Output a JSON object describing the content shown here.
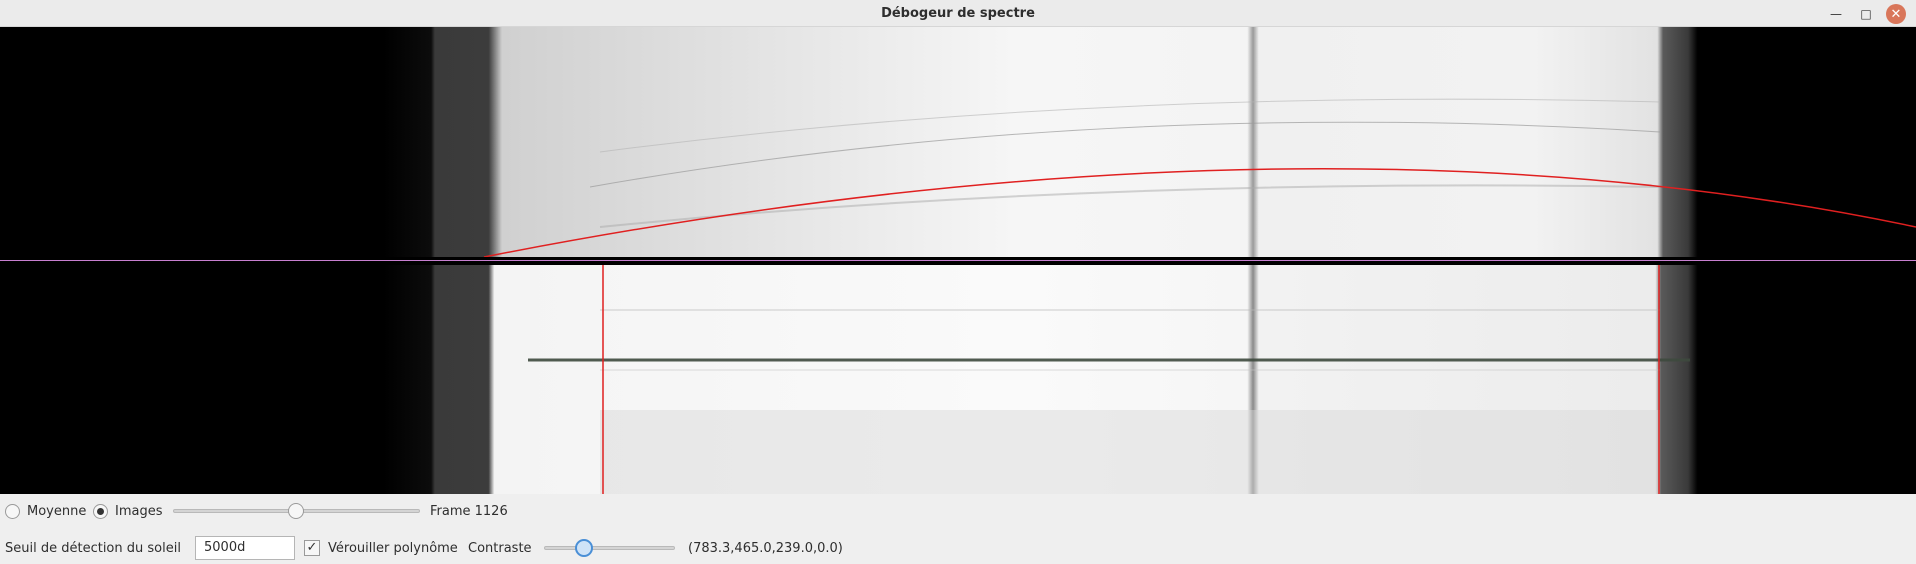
{
  "window": {
    "title": "Débogeur de spectre"
  },
  "mode": {
    "option_average": "Moyenne",
    "option_images": "Images",
    "selected": "Images"
  },
  "frame": {
    "label": "Frame 1126",
    "slider_level": 0.5
  },
  "detection": {
    "label": "Seuil de détection du soleil",
    "value": "5000d"
  },
  "lock_polynomial": {
    "label": "Vérouiller polynôme",
    "checked": true
  },
  "contrast": {
    "label": "Contraste",
    "slider_level": 0.31
  },
  "readout": "(783.3,465.0,239.0,0.0)",
  "icons": {
    "minimize": "minimize-icon",
    "maximize": "maximize-icon",
    "close": "close-icon"
  },
  "colors": {
    "fit_curve": "#e02020",
    "separator": "#c77fd0",
    "close_button": "#d9765a"
  }
}
